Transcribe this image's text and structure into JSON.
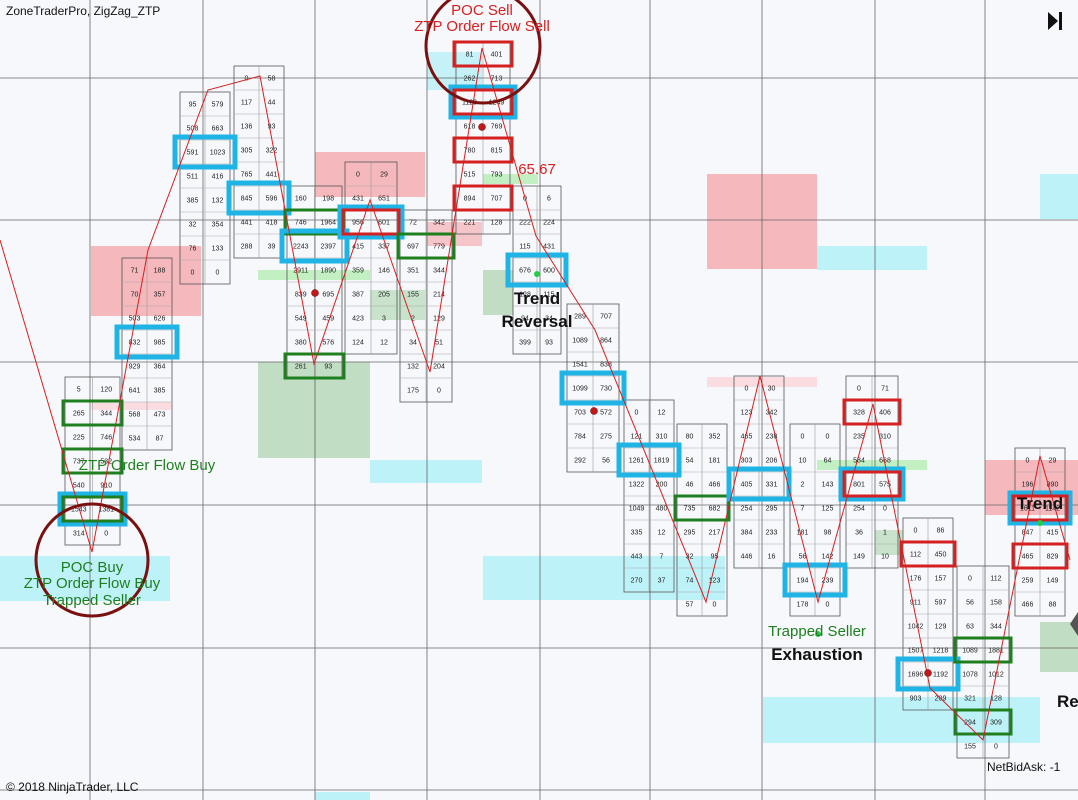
{
  "header": {
    "title": "ZoneTraderPro, ZigZag_ZTP",
    "play_icon": "skip-forward-icon"
  },
  "footer": {
    "copyright": "© 2018 NinjaTrader, LLC",
    "net_bid_ask": "NetBidAsk: -1"
  },
  "colors": {
    "buy": "#1f7f1f",
    "sell": "#d42020",
    "poc": "#1fb4e6",
    "zigzag": "#d42020",
    "circle": "#7a1010"
  },
  "chart_data": {
    "type": "table",
    "bars": [
      {
        "rows": [
          [
            "5",
            "120"
          ],
          [
            "265",
            "344"
          ],
          [
            "225",
            "746"
          ],
          [
            "737",
            "532"
          ],
          [
            "540",
            "910"
          ],
          [
            "1543",
            "1381"
          ],
          [
            "314",
            "0"
          ]
        ]
      },
      {
        "rows": [
          [
            "71",
            "188"
          ],
          [
            "70",
            "357"
          ],
          [
            "503",
            "626"
          ],
          [
            "832",
            "985"
          ],
          [
            "929",
            "364"
          ],
          [
            "641",
            "385"
          ],
          [
            "568",
            "473"
          ],
          [
            "534",
            "87"
          ]
        ]
      },
      {
        "rows": [
          [
            "95",
            "579"
          ],
          [
            "508",
            "663"
          ],
          [
            "591",
            "1023"
          ],
          [
            "511",
            "416"
          ],
          [
            "385",
            "132"
          ],
          [
            "32",
            "354"
          ],
          [
            "76",
            "133"
          ],
          [
            "0",
            "0"
          ]
        ]
      },
      {
        "rows": [
          [
            "0",
            "58"
          ],
          [
            "117",
            "44"
          ],
          [
            "136",
            "93"
          ],
          [
            "305",
            "322"
          ],
          [
            "765",
            "441"
          ],
          [
            "845",
            "596"
          ],
          [
            "441",
            "418"
          ],
          [
            "288",
            "39"
          ]
        ]
      },
      {
        "rows": [
          [
            "160",
            "198"
          ],
          [
            "746",
            "1964"
          ],
          [
            "2243",
            "2397"
          ],
          [
            "2911",
            "1890"
          ],
          [
            "839",
            "695"
          ],
          [
            "549",
            "459"
          ],
          [
            "380",
            "576"
          ],
          [
            "261",
            "93"
          ]
        ]
      },
      {
        "rows": [
          [
            "0",
            "29"
          ],
          [
            "431",
            "651"
          ],
          [
            "956",
            "601"
          ],
          [
            "415",
            "337"
          ],
          [
            "359",
            "146"
          ],
          [
            "387",
            "205"
          ],
          [
            "423",
            "3"
          ],
          [
            "124",
            "12"
          ]
        ]
      },
      {
        "rows": [
          [
            "72",
            "342"
          ],
          [
            "697",
            "779"
          ],
          [
            "351",
            "344"
          ],
          [
            "155",
            "214"
          ],
          [
            "2",
            "129"
          ],
          [
            "34",
            "51"
          ],
          [
            "132",
            "204"
          ],
          [
            "175",
            "0"
          ]
        ]
      },
      {
        "rows": [
          [
            "81",
            "401"
          ],
          [
            "262",
            "713"
          ],
          [
            "1129",
            "1249"
          ],
          [
            "618",
            "769"
          ],
          [
            "780",
            "815"
          ],
          [
            "515",
            "793"
          ],
          [
            "894",
            "707"
          ],
          [
            "221",
            "128"
          ]
        ]
      },
      {
        "rows": [
          [
            "0",
            "6"
          ],
          [
            "222",
            "224"
          ],
          [
            "115",
            "431"
          ],
          [
            "676",
            "600"
          ],
          [
            "128",
            "115"
          ],
          [
            "94",
            "34"
          ],
          [
            "399",
            "93"
          ]
        ]
      },
      {
        "rows": [
          [
            "289",
            "707"
          ],
          [
            "1089",
            "864"
          ],
          [
            "1541",
            "838"
          ],
          [
            "1099",
            "730"
          ],
          [
            "703",
            "572"
          ],
          [
            "784",
            "275"
          ],
          [
            "292",
            "56"
          ]
        ]
      },
      {
        "rows": [
          [
            "0",
            "12"
          ],
          [
            "121",
            "310"
          ],
          [
            "1261",
            "1819"
          ],
          [
            "1322",
            "200"
          ],
          [
            "1049",
            "480"
          ],
          [
            "335",
            "12"
          ],
          [
            "443",
            "7"
          ],
          [
            "270",
            "37"
          ]
        ]
      },
      {
        "rows": [
          [
            "80",
            "352"
          ],
          [
            "54",
            "181"
          ],
          [
            "46",
            "466"
          ],
          [
            "735",
            "682"
          ],
          [
            "295",
            "217"
          ],
          [
            "32",
            "95"
          ],
          [
            "74",
            "123"
          ],
          [
            "57",
            "0"
          ]
        ]
      },
      {
        "rows": [
          [
            "0",
            "30"
          ],
          [
            "123",
            "342"
          ],
          [
            "465",
            "238"
          ],
          [
            "303",
            "206"
          ],
          [
            "405",
            "331"
          ],
          [
            "254",
            "295"
          ],
          [
            "384",
            "233"
          ],
          [
            "446",
            "16"
          ]
        ]
      },
      {
        "rows": [
          [
            "0",
            "0"
          ],
          [
            "10",
            "64"
          ],
          [
            "2",
            "143"
          ],
          [
            "7",
            "125"
          ],
          [
            "181",
            "98"
          ],
          [
            "56",
            "142"
          ],
          [
            "194",
            "239"
          ],
          [
            "178",
            "0"
          ]
        ]
      },
      {
        "rows": [
          [
            "0",
            "71"
          ],
          [
            "328",
            "406"
          ],
          [
            "235",
            "310"
          ],
          [
            "584",
            "668"
          ],
          [
            "801",
            "575"
          ],
          [
            "254",
            "0"
          ],
          [
            "36",
            "1"
          ],
          [
            "149",
            "10"
          ]
        ]
      },
      {
        "rows": [
          [
            "0",
            "86"
          ],
          [
            "112",
            "450"
          ],
          [
            "176",
            "157"
          ],
          [
            "911",
            "597"
          ],
          [
            "1042",
            "129"
          ],
          [
            "1507",
            "1218"
          ],
          [
            "1696",
            "1192"
          ],
          [
            "903",
            "209"
          ]
        ]
      },
      {
        "rows": [
          [
            "0",
            "112"
          ],
          [
            "56",
            "158"
          ],
          [
            "63",
            "344"
          ],
          [
            "1089",
            "1881"
          ],
          [
            "1078",
            "1012"
          ],
          [
            "321",
            "128"
          ],
          [
            "294",
            "309"
          ],
          [
            "155",
            "0"
          ]
        ]
      },
      {
        "rows": [
          [
            "0",
            "29"
          ],
          [
            "196",
            "890"
          ],
          [
            "1611",
            "1142"
          ],
          [
            "847",
            "415"
          ],
          [
            "465",
            "829"
          ],
          [
            "259",
            "149"
          ],
          [
            "466",
            "88"
          ]
        ]
      }
    ],
    "annotations": {
      "poc_sell": "POC Sell",
      "ztp_sell": "ZTP Order Flow Sell",
      "value_6567": "65.67",
      "trend1": "Trend",
      "reversal1": "Reversal",
      "ztp_buy_top": "ZTP Order Flow Buy",
      "poc_buy": "POC Buy",
      "ztp_buy_bottom": "ZTP Order Flow Buy",
      "trapped_seller_left": "Trapped Seller",
      "trapped_seller_right": "Trapped Seller",
      "exhaustion": "Exhaustion",
      "trend2": "Trend",
      "re_partial": "Re"
    }
  }
}
